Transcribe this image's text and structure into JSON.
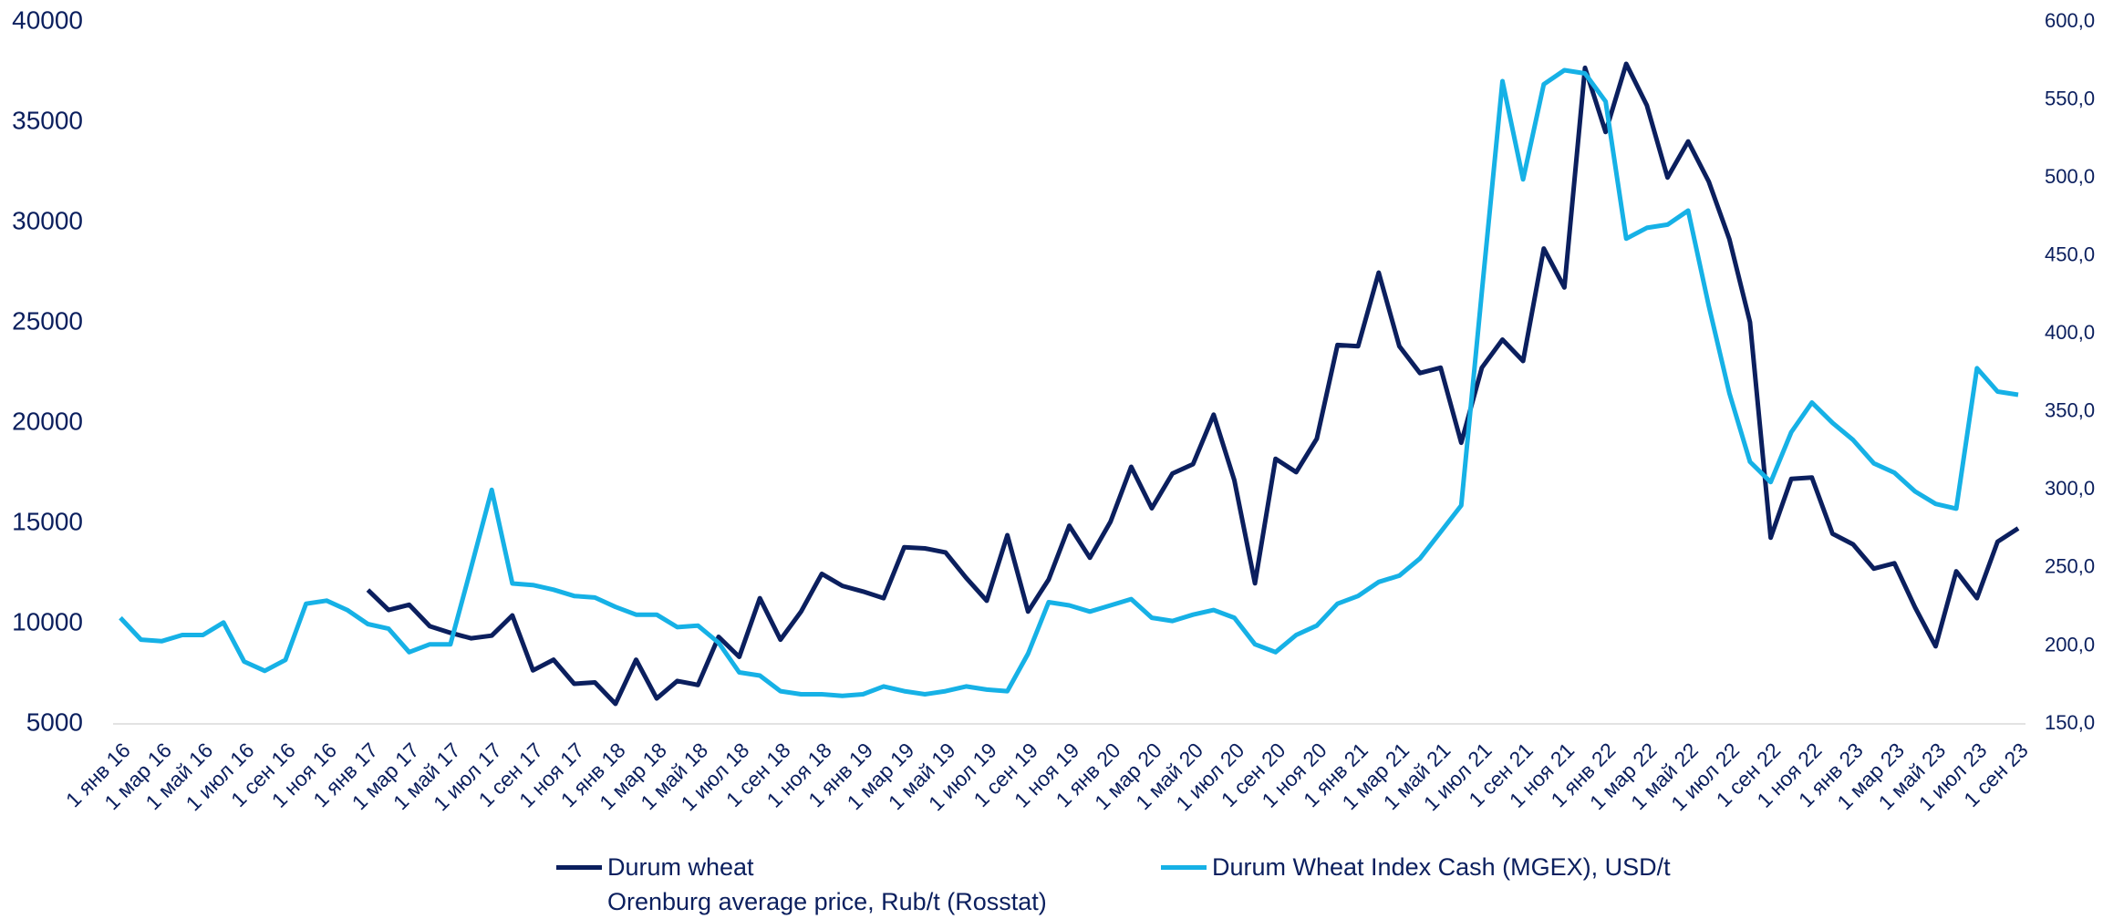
{
  "chart_data": {
    "type": "line",
    "categories": [
      "1 янв 16",
      null,
      "1 мар 16",
      null,
      "1 май 16",
      null,
      "1 июл 16",
      null,
      "1 сен 16",
      null,
      "1 ноя 16",
      null,
      "1 янв 17",
      null,
      "1 мар 17",
      null,
      "1 май 17",
      null,
      "1 июл 17",
      null,
      "1 сен 17",
      null,
      "1 ноя 17",
      null,
      "1 янв 18",
      null,
      "1 мар 18",
      null,
      "1 май 18",
      null,
      "1 июл 18",
      null,
      "1 сен 18",
      null,
      "1 ноя 18",
      null,
      "1 янв 19",
      null,
      "1 мар 19",
      null,
      "1 май 19",
      null,
      "1 июл 19",
      null,
      "1 сен 19",
      null,
      "1 ноя 19",
      null,
      "1 янв 20",
      null,
      "1 мар 20",
      null,
      "1 май 20",
      null,
      "1 июл 20",
      null,
      "1 сен 20",
      null,
      "1 ноя 20",
      null,
      "1 янв 21",
      null,
      "1 мар 21",
      null,
      "1 май 21",
      null,
      "1 июл 21",
      null,
      "1 сен 21",
      null,
      "1 ноя 21",
      null,
      "1 янв 22",
      null,
      "1 мар 22",
      null,
      "1 май 22",
      null,
      "1 июл 22",
      null,
      "1 сен 22",
      null,
      "1 ноя 22",
      null,
      "1 янв 23",
      null,
      "1 мар 23",
      null,
      "1 май 23",
      null,
      "1 июл 23",
      null,
      "1 сен 23"
    ],
    "series": [
      {
        "name": "Durum wheat\nOrenburg average price, Rub/t (Rosstat)",
        "color": "#0b1f5e",
        "values": [
          null,
          null,
          null,
          null,
          null,
          null,
          null,
          null,
          null,
          null,
          null,
          null,
          11676,
          10675,
          10940,
          9870,
          9540,
          9270,
          9400,
          10410,
          7670,
          8200,
          7000,
          7070,
          6000,
          8200,
          6270,
          7140,
          6940,
          9340,
          8340,
          11270,
          9200,
          10600,
          12480,
          11880,
          11600,
          11270,
          13810,
          13750,
          13550,
          12280,
          11140,
          14410,
          10600,
          12200,
          14880,
          13280,
          15080,
          17820,
          15750,
          17480,
          17950,
          20420,
          17150,
          12010,
          18220,
          17550,
          19220,
          23890,
          23830,
          27500,
          23830,
          22490,
          22760,
          19020,
          22760,
          24160,
          23090,
          28700,
          26760,
          37710,
          34510,
          37910,
          35840,
          32240,
          34040,
          32040,
          29170,
          25030,
          14280,
          17220,
          17280,
          14480,
          13950,
          12740,
          13010,
          10810,
          8870,
          12610,
          11270,
          14080,
          14750
        ]
      },
      {
        "name": "Durum Wheat Index Cash (MGEX), USD/t",
        "color": "#16b1e6",
        "axis": "y2",
        "values": [
          218,
          204,
          203,
          207,
          207,
          215,
          190,
          184,
          191,
          227,
          229,
          223,
          214,
          211,
          196,
          201,
          201,
          250,
          300,
          240,
          239,
          236,
          232,
          231,
          225,
          220,
          220,
          212,
          213,
          202,
          183,
          181,
          171,
          169,
          169,
          168,
          169,
          174,
          171,
          169,
          171,
          174,
          172,
          171,
          195,
          228,
          226,
          222,
          226,
          230,
          218,
          216,
          220,
          223,
          218,
          201,
          196,
          207,
          213,
          227,
          232,
          241,
          245,
          256,
          273,
          290,
          427,
          562,
          499,
          560,
          569,
          567,
          549,
          461,
          468,
          470,
          479,
          418,
          362,
          318,
          305,
          337,
          356,
          343,
          332,
          317,
          311,
          299,
          291,
          288,
          378,
          363,
          361
        ]
      }
    ],
    "ylim": [
      5000,
      40000
    ],
    "yticks": [
      5000,
      10000,
      15000,
      20000,
      25000,
      30000,
      35000,
      40000
    ],
    "y2lim": [
      150,
      600
    ],
    "y2ticks": [
      {
        "value": 150,
        "label": "150,0"
      },
      {
        "value": 200,
        "label": "200,0"
      },
      {
        "value": 250,
        "label": "250,0"
      },
      {
        "value": 300,
        "label": "300,0"
      },
      {
        "value": 350,
        "label": "350,0"
      },
      {
        "value": 400,
        "label": "400,0"
      },
      {
        "value": 450,
        "label": "450,0"
      },
      {
        "value": 500,
        "label": "500,0"
      },
      {
        "value": 550,
        "label": "550,0"
      },
      {
        "value": 600,
        "label": "600,0"
      }
    ],
    "grid": false
  }
}
